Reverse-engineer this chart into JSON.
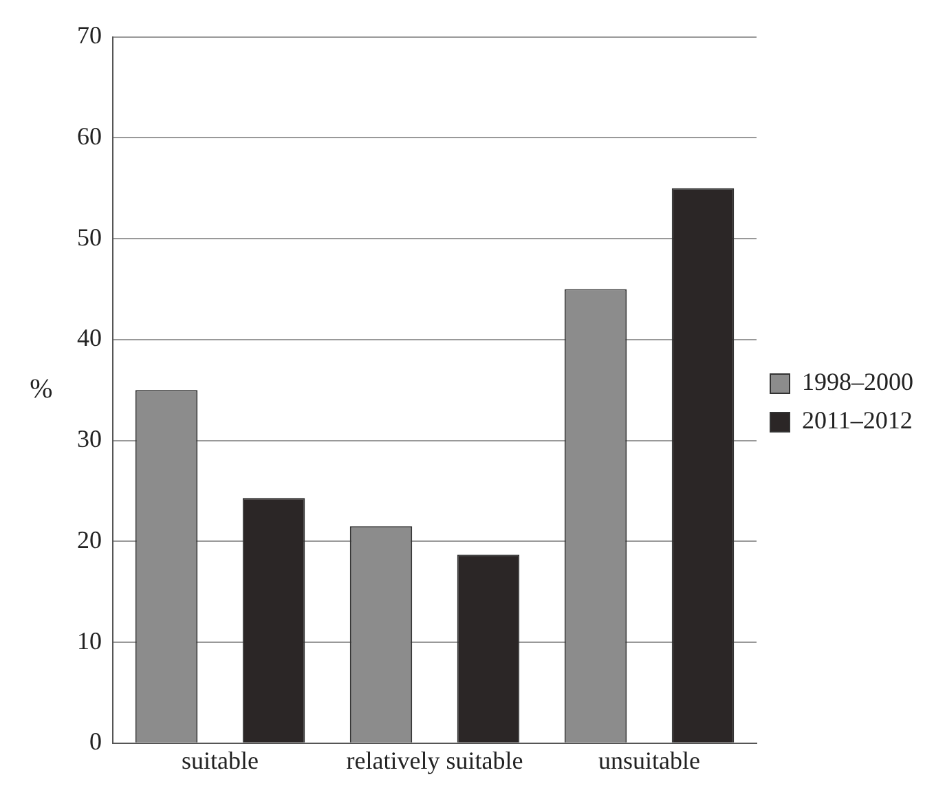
{
  "chart_data": {
    "type": "bar",
    "ylabel": "%",
    "categories": [
      "suitable",
      "relatively suitable",
      "unsuitable"
    ],
    "series": [
      {
        "name": "1998–2000",
        "color": "#8c8c8c",
        "values": [
          35,
          21.5,
          45
        ]
      },
      {
        "name": "2011–2012",
        "color": "#2b2626",
        "values": [
          24.3,
          18.7,
          55
        ]
      }
    ],
    "ylim": [
      0,
      70
    ],
    "yticks": [
      0,
      10,
      20,
      30,
      40,
      50,
      60,
      70
    ],
    "grid": "y",
    "legend": "right"
  }
}
